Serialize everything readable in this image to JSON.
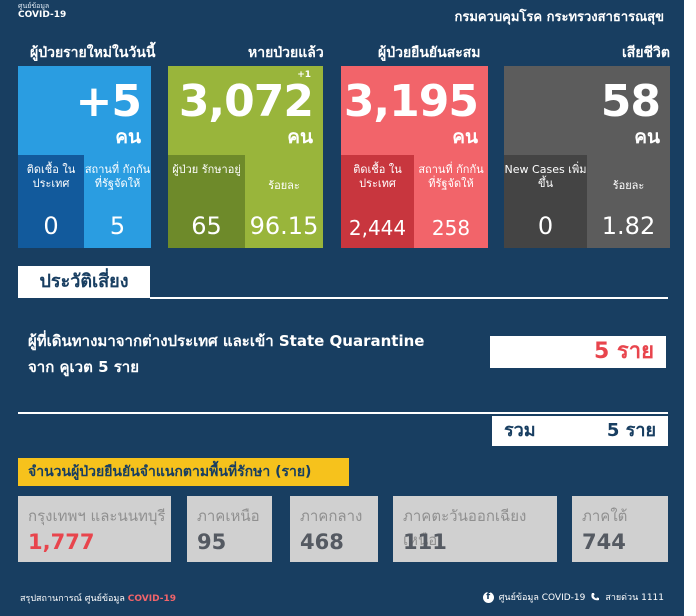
{
  "header": {
    "logo_line1": "ศูนย์ข้อมูล",
    "logo_line2": "COVID-19",
    "agency": "กรมควบคุมโรค กระทรวงสาธารณสุข"
  },
  "stats": {
    "new_cases": {
      "label": "ผู้ป่วยรายใหม่ในวันนี้",
      "value": "+5",
      "unit": "คน",
      "sub": [
        {
          "label": "ติดเชื้อ ในประเทศ",
          "value": "0"
        },
        {
          "label": "สถานที่ กักกัน ที่รัฐจัดให้",
          "value": "5"
        }
      ]
    },
    "recovered": {
      "label": "หายป่วยแล้ว",
      "change": "+1",
      "value": "3,072",
      "unit": "คน",
      "sub": [
        {
          "label": "ผู้ป่วย รักษาอยู่",
          "value": "65"
        },
        {
          "label": "ร้อยละ",
          "value": "96.15"
        }
      ]
    },
    "confirmed": {
      "label": "ผู้ป่วยยืนยันสะสม",
      "value": "3,195",
      "unit": "คน",
      "sub": [
        {
          "label": "ติดเชื้อ ในประเทศ",
          "value": "2,444"
        },
        {
          "label": "สถานที่ กักกัน ที่รัฐจัดให้",
          "value": "258"
        }
      ]
    },
    "deaths": {
      "label": "เสียชีวิต",
      "value": "58",
      "unit": "คน",
      "sub": [
        {
          "label": "New Cases เพิ่มขึ้น",
          "value": "0"
        },
        {
          "label": "ร้อยละ",
          "value": "1.82"
        }
      ]
    }
  },
  "risk": {
    "title": "ประวัติเสี่ยง",
    "line1": "ผู้ที่เดินทางมาจากต่างประเทศ และเข้า State Quarantine",
    "line2": "จาก คูเวต 5 ราย",
    "count": "5 ราย",
    "total_label": "รวม",
    "total_value": "5 ราย"
  },
  "regions": {
    "title": "จำนวนผู้ป่วยยืนยันจำแนกตามพื้นที่รักษา (ราย)",
    "items": [
      {
        "name": "กรุงเทพฯ และนนทบุรี",
        "value": "1,777"
      },
      {
        "name": "ภาคเหนือ",
        "value": "95"
      },
      {
        "name": "ภาคกลาง",
        "value": "468"
      },
      {
        "name": "ภาคตะวันออกเฉียงเหนือ",
        "value": "111"
      },
      {
        "name": "ภาคใต้",
        "value": "744"
      }
    ]
  },
  "footer": {
    "left_text": "สรุปสถานการณ์ ศูนย์ข้อมูล",
    "left_highlight": "COVID-19",
    "fb_icon_glyph": "f",
    "fb_text": "ศูนย์ข้อมูล COVID-19",
    "hotline": "สายด่วน 1111"
  },
  "colors": {
    "background": "#183e61",
    "new_cases": "#2a9de1",
    "recovered": "#99b53b",
    "confirmed": "#f2646a",
    "deaths": "#5c5c5c",
    "highlight_red": "#e8454d",
    "region_box": "#d0d0d0",
    "section_yellow": "#f6c21c"
  }
}
